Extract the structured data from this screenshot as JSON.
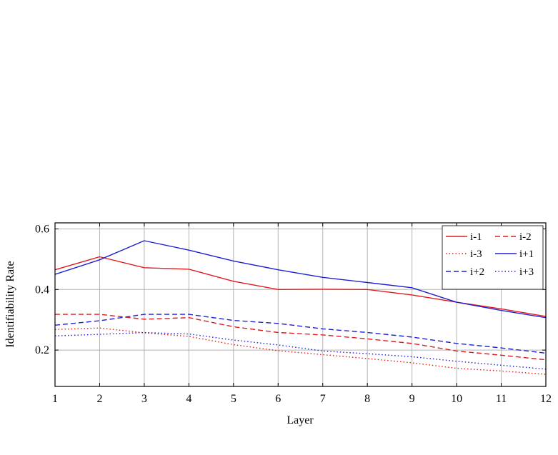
{
  "chart_data": {
    "type": "line",
    "title": "",
    "xlabel": "Layer",
    "ylabel": "Identifiability Rate",
    "x": [
      1,
      2,
      3,
      4,
      5,
      6,
      7,
      8,
      9,
      10,
      11,
      12
    ],
    "xlim": [
      1,
      12
    ],
    "ylim": [
      0.08,
      0.62
    ],
    "yticks": [
      0.2,
      0.4,
      0.6
    ],
    "ytick_labels": [
      "0.2",
      "0.4",
      "0.6"
    ],
    "grid": true,
    "legend_position": "top-right",
    "series": [
      {
        "name": "i-1",
        "color": "#e41a1c",
        "dash": "solid",
        "values": [
          0.465,
          0.508,
          0.472,
          0.467,
          0.427,
          0.4,
          0.401,
          0.4,
          0.382,
          0.358,
          0.336,
          0.311
        ]
      },
      {
        "name": "i-2",
        "color": "#e41a1c",
        "dash": "dashed",
        "values": [
          0.318,
          0.318,
          0.302,
          0.307,
          0.277,
          0.258,
          0.25,
          0.237,
          0.222,
          0.197,
          0.183,
          0.168
        ]
      },
      {
        "name": "i-3",
        "color": "#e41a1c",
        "dash": "dotted",
        "values": [
          0.268,
          0.273,
          0.257,
          0.245,
          0.218,
          0.198,
          0.185,
          0.172,
          0.158,
          0.14,
          0.131,
          0.12
        ]
      },
      {
        "name": "i+1",
        "color": "#1f1fd6",
        "dash": "solid",
        "values": [
          0.45,
          0.498,
          0.561,
          0.53,
          0.494,
          0.465,
          0.44,
          0.423,
          0.406,
          0.358,
          0.331,
          0.307
        ]
      },
      {
        "name": "i+2",
        "color": "#1f1fd6",
        "dash": "dashed",
        "values": [
          0.282,
          0.297,
          0.318,
          0.318,
          0.298,
          0.288,
          0.27,
          0.258,
          0.243,
          0.222,
          0.207,
          0.19
        ]
      },
      {
        "name": "i+3",
        "color": "#1f1fd6",
        "dash": "dotted",
        "values": [
          0.247,
          0.252,
          0.258,
          0.253,
          0.233,
          0.217,
          0.197,
          0.188,
          0.178,
          0.163,
          0.15,
          0.137
        ]
      }
    ]
  }
}
